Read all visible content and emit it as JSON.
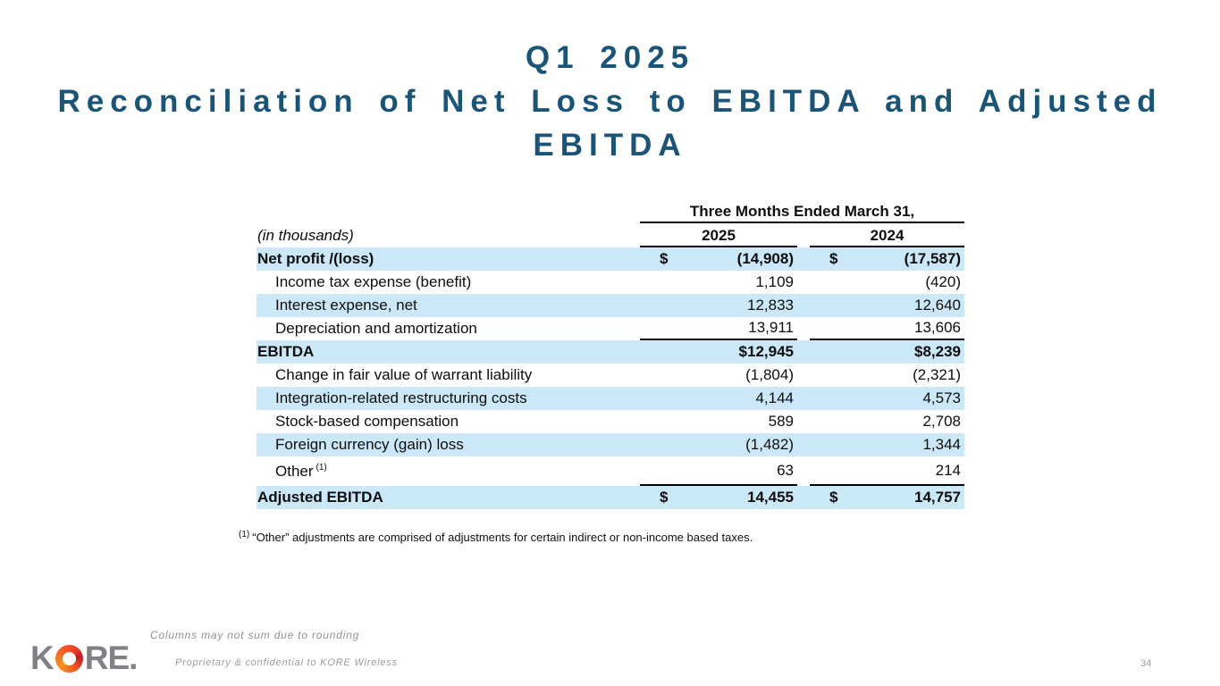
{
  "slide": {
    "title_lines": [
      "Q1 2025",
      "Reconciliation of Net Loss to EBITDA and Adjusted",
      "EBITDA"
    ]
  },
  "table": {
    "group_header": "Three Months Ended March 31,",
    "unit_label": "(in thousands)",
    "col_headers": [
      "2025",
      "2024"
    ],
    "dollar_sign": "$",
    "rows": [
      {
        "label": "Net profit /(loss)",
        "v2025": "(14,908)",
        "v2024": "(17,587)"
      },
      {
        "label": "Income tax expense (benefit)",
        "v2025": "1,109",
        "v2024": "(420)"
      },
      {
        "label": "Interest expense, net",
        "v2025": "12,833",
        "v2024": "12,640"
      },
      {
        "label": "Depreciation and amortization",
        "v2025": "13,911",
        "v2024": "13,606"
      },
      {
        "label": "EBITDA",
        "v2025": "$12,945",
        "v2024": "$8,239"
      },
      {
        "label": "Change in fair value of warrant liability",
        "v2025": "(1,804)",
        "v2024": "(2,321)"
      },
      {
        "label": "Integration-related restructuring costs",
        "v2025": "4,144",
        "v2024": "4,573"
      },
      {
        "label": "Stock-based compensation",
        "v2025": "589",
        "v2024": "2,708"
      },
      {
        "label": "Foreign currency (gain) loss",
        "v2025": "(1,482)",
        "v2024": "1,344"
      },
      {
        "label": "Other",
        "sup": "(1)",
        "v2025": "63",
        "v2024": "214"
      },
      {
        "label": "Adjusted EBITDA",
        "v2025": "14,455",
        "v2024": "14,757"
      }
    ]
  },
  "footnote": {
    "marker": "(1)",
    "text": "“Other” adjustments are comprised of adjustments for certain indirect or non-income based taxes."
  },
  "footer": {
    "rounding_note": "Columns may not sum due to rounding",
    "confidential": "Proprietary & confidential to KORE Wireless",
    "page_number": "34",
    "logo_k": "K",
    "logo_re": "RE."
  },
  "colors": {
    "title": "#1a5477",
    "row_highlight": "#cbe8f8",
    "table_text": "#0d0d0d",
    "footer_gray": "#8f9295",
    "logo_gray": "#808184",
    "logo_orange": "#f7941d",
    "logo_red": "#be1e2d"
  }
}
